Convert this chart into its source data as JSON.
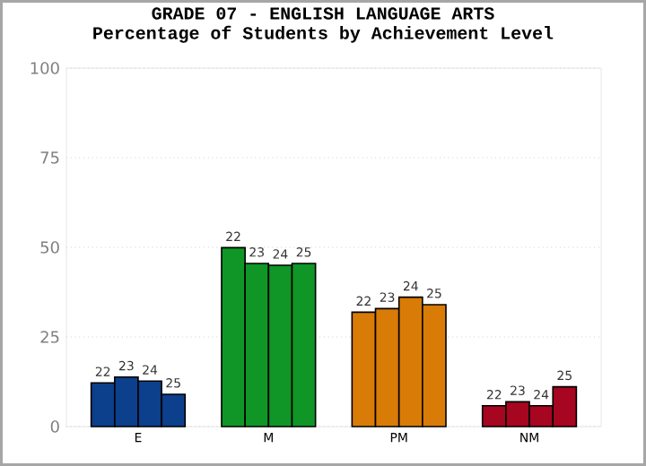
{
  "chart_data": {
    "type": "bar",
    "title": "GRADE 07 - ENGLISH LANGUAGE ARTS",
    "subtitle": "Percentage of Students by Achievement Level",
    "categories": [
      "E",
      "M",
      "PM",
      "NM"
    ],
    "series": [
      {
        "name": "22",
        "colors": [
          "#0c3f8c",
          "#0f9626",
          "#d97b07",
          "#a6061f"
        ],
        "values": [
          12.2,
          49.9,
          31.9,
          5.8
        ]
      },
      {
        "name": "23",
        "colors": [
          "#0c3f8c",
          "#0f9626",
          "#d97b07",
          "#a6061f"
        ],
        "values": [
          13.8,
          45.5,
          32.9,
          6.9
        ]
      },
      {
        "name": "24",
        "colors": [
          "#0c3f8c",
          "#0f9626",
          "#d97b07",
          "#a6061f"
        ],
        "values": [
          12.7,
          45.0,
          36.1,
          5.8
        ]
      },
      {
        "name": "25",
        "colors": [
          "#0c3f8c",
          "#0f9626",
          "#d97b07",
          "#a6061f"
        ],
        "values": [
          9.0,
          45.5,
          34.0,
          11.1
        ]
      }
    ],
    "ylim": [
      0,
      100
    ],
    "yticks": [
      0,
      25,
      50,
      75,
      100
    ],
    "grid": "y"
  }
}
